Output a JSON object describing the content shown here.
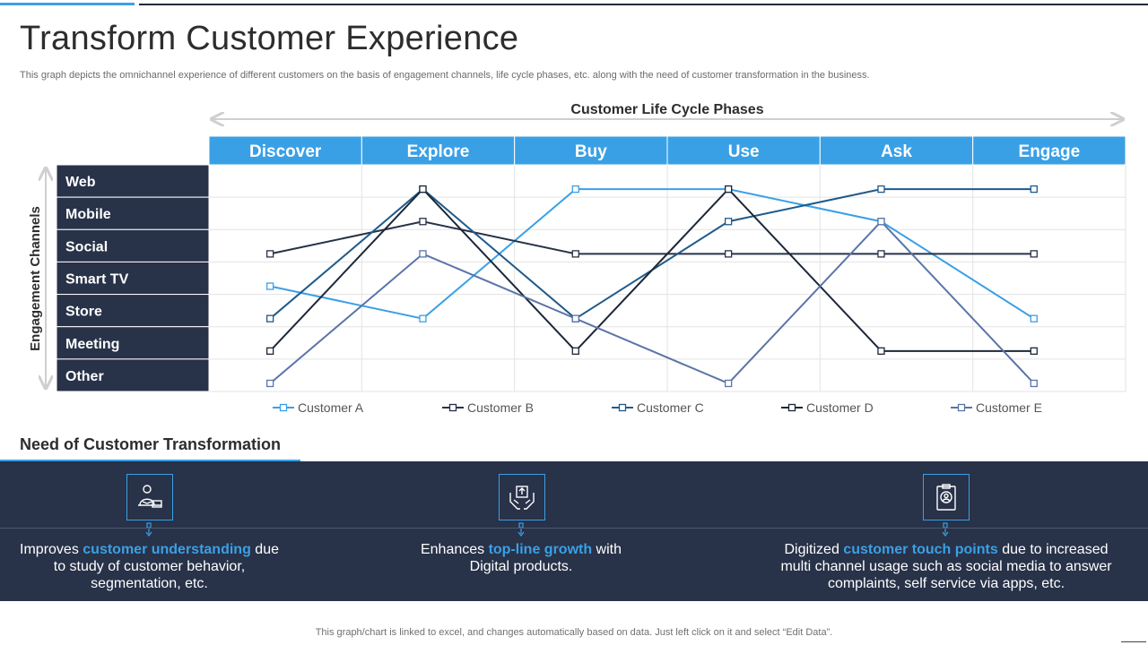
{
  "header": {
    "title": "Transform Customer Experience",
    "subtitle": "This graph depicts the omnichannel experience of different customers on the basis of engagement channels, life cycle phases, etc. along with the need of customer transformation in the business."
  },
  "chart_data": {
    "type": "line",
    "x_axis_title": "Customer Life Cycle Phases",
    "y_axis_title": "Engagement Channels",
    "categories": [
      "Discover",
      "Explore",
      "Buy",
      "Use",
      "Ask",
      "Engage"
    ],
    "y_categories": [
      "Web",
      "Mobile",
      "Social",
      "Smart TV",
      "Store",
      "Meeting",
      "Other"
    ],
    "series": [
      {
        "name": "Customer A",
        "color": "#3aa0e6",
        "values": [
          "Smart TV",
          "Store",
          "Web",
          "Web",
          "Mobile",
          "Store"
        ]
      },
      {
        "name": "Customer B",
        "color": "#283248",
        "values": [
          "Social",
          "Mobile",
          "Social",
          "Social",
          "Social",
          "Social"
        ]
      },
      {
        "name": "Customer C",
        "color": "#1f5a8a",
        "values": [
          "Store",
          "Web",
          "Store",
          "Mobile",
          "Web",
          "Web"
        ]
      },
      {
        "name": "Customer D",
        "color": "#1c2738",
        "values": [
          "Meeting",
          "Web",
          "Meeting",
          "Web",
          "Meeting",
          "Meeting"
        ]
      },
      {
        "name": "Customer E",
        "color": "#5b74a8",
        "values": [
          "Other",
          "Social",
          "Store",
          "Other",
          "Mobile",
          "Other"
        ]
      }
    ],
    "legend_position": "bottom",
    "grid": true
  },
  "transformation": {
    "title": "Need of Customer Transformation",
    "cards": [
      {
        "icon": "person-support-icon",
        "text_before": "Improves ",
        "highlight": "customer understanding",
        "text_after": " due to study of customer behavior, segmentation, etc."
      },
      {
        "icon": "hands-box-icon",
        "text_before": "Enhances ",
        "highlight": "top-line growth",
        "text_after": " with Digital products."
      },
      {
        "icon": "profile-clipboard-icon",
        "text_before": "Digitized ",
        "highlight": "customer touch points",
        "text_after": " due to increased multi channel usage such as social media to answer complaints, self service via apps, etc."
      }
    ]
  },
  "footer": {
    "note": "This graph/chart is linked to excel,  and changes automatically based on data. Just left click on it and select “Edit Data”."
  }
}
